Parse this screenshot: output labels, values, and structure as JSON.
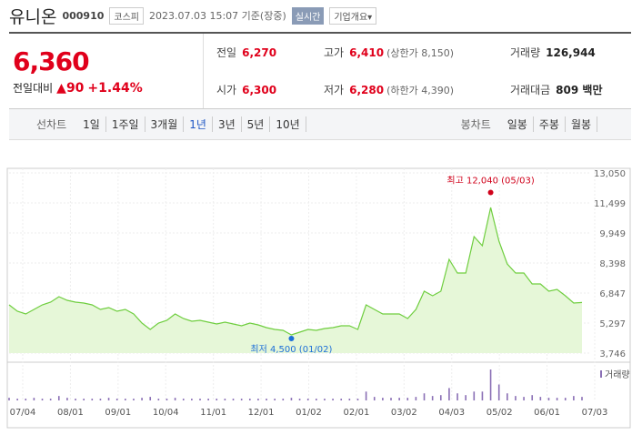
{
  "header": {
    "name": "유니온",
    "code": "000910",
    "market": "코스피",
    "time": "2023.07.03 15:07 기준(장중)",
    "realtime": "실시간",
    "overview": "기업개요▾"
  },
  "quote": {
    "price": "6,360",
    "change_label": "전일대비",
    "change": "▲90",
    "change_pct": "+1.44%",
    "rows": [
      [
        [
          "전일",
          "6,270",
          ""
        ],
        [
          "고가",
          "6,410",
          "(상한가 8,150)"
        ],
        [
          "거래량",
          "126,944",
          ""
        ]
      ],
      [
        [
          "시가",
          "6,300",
          ""
        ],
        [
          "저가",
          "6,280",
          "(하한가 4,390)"
        ],
        [
          "거래대금",
          "809 백만",
          ""
        ]
      ]
    ]
  },
  "tabs": {
    "line_label": "선차트",
    "line": [
      "1일",
      "1주일",
      "3개월",
      "1년",
      "3년",
      "5년",
      "10년"
    ],
    "selected": "1년",
    "candle_label": "봉차트",
    "candle": [
      "일봉",
      "주봉",
      "월봉"
    ]
  },
  "chart_data": {
    "type": "area",
    "color": "#6fce3f",
    "values": [
      6235,
      5906,
      5765,
      6000,
      6235,
      6376,
      6658,
      6470,
      6376,
      6329,
      6235,
      6000,
      6094,
      5906,
      6000,
      5765,
      5295,
      4966,
      5295,
      5436,
      5765,
      5530,
      5389,
      5436,
      5342,
      5248,
      5342,
      5248,
      5154,
      5295,
      5201,
      5060,
      4966,
      4919,
      4684,
      4825,
      4966,
      4919,
      5013,
      5060,
      5154,
      5154,
      4966,
      6235,
      6000,
      5765,
      5765,
      5765,
      5530,
      6000,
      6940,
      6705,
      6940,
      8585,
      7880,
      7880,
      9760,
      9290,
      11264,
      9525,
      8350,
      7880,
      7880,
      7316,
      7316,
      6940,
      7034,
      6705,
      6329,
      6360
    ],
    "x_labels": [
      "07/04",
      "08/01",
      "09/01",
      "10/04",
      "11/01",
      "12/01",
      "01/02",
      "02/01",
      "03/02",
      "04/03",
      "05/02",
      "06/01",
      "07/03"
    ],
    "ylim": [
      3746,
      13050
    ],
    "yticks": [
      {
        "value": 3746,
        "label": "3,746"
      },
      {
        "value": 5297,
        "label": "5,297"
      },
      {
        "value": 6847,
        "label": "6,847"
      },
      {
        "value": 8398,
        "label": "8,398"
      },
      {
        "value": 9949,
        "label": "9,949"
      },
      {
        "value": 11499,
        "label": "11,499"
      },
      {
        "value": 13050,
        "label": "13,050"
      }
    ],
    "annotations": [
      {
        "label": "최고 12,040 (05/03)",
        "value": 12040,
        "color": "#d0021b"
      },
      {
        "label": "최저 4,500 (01/02)",
        "value": 4500,
        "color": "#1d6fd8"
      }
    ],
    "volume": {
      "label": "거래량",
      "color": "#8a6fb5",
      "values": [
        3,
        2,
        2,
        3,
        2,
        2,
        5,
        3,
        2,
        2,
        2,
        2,
        3,
        2,
        2,
        2,
        3,
        4,
        2,
        2,
        3,
        2,
        2,
        2,
        2,
        2,
        2,
        2,
        2,
        2,
        2,
        2,
        2,
        2,
        3,
        2,
        2,
        2,
        2,
        2,
        2,
        2,
        2,
        10,
        4,
        3,
        3,
        3,
        3,
        4,
        8,
        5,
        6,
        14,
        8,
        6,
        10,
        10,
        35,
        18,
        8,
        5,
        4,
        6,
        4,
        3,
        3,
        3,
        5,
        4
      ]
    }
  }
}
